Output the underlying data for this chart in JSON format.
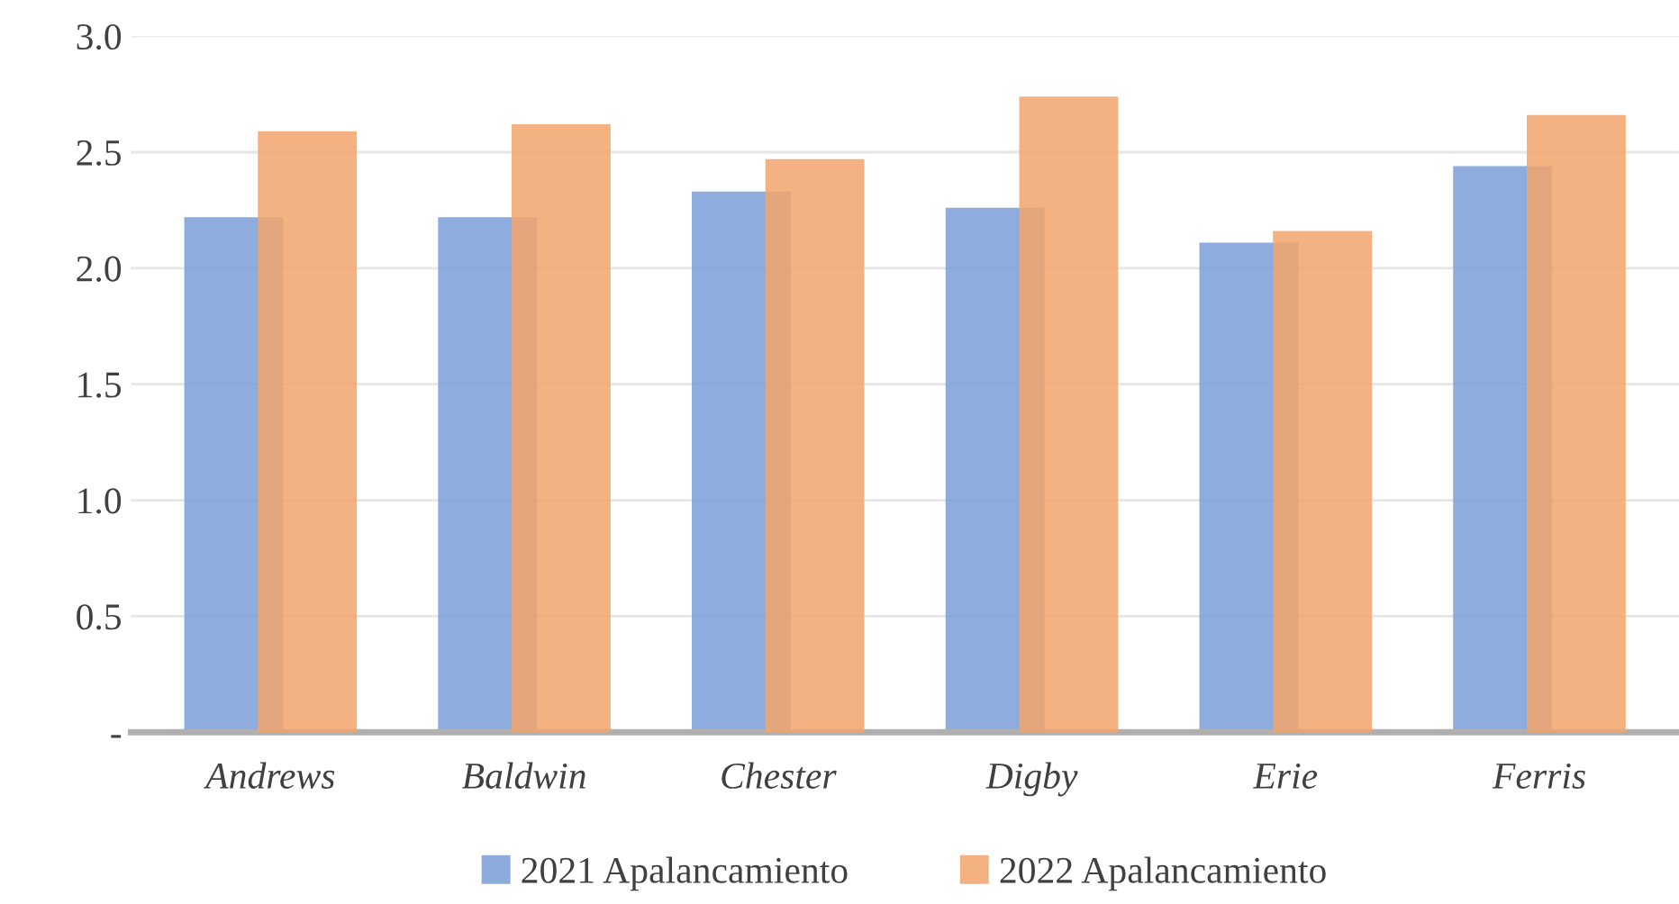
{
  "chart_data": {
    "type": "bar",
    "categories": [
      "Andrews",
      "Baldwin",
      "Chester",
      "Digby",
      "Erie",
      "Ferris"
    ],
    "series": [
      {
        "name": "2021 Apalancamiento",
        "color": "#7a9dd8",
        "values": [
          2.22,
          2.22,
          2.33,
          2.26,
          2.11,
          2.44
        ]
      },
      {
        "name": "2022 Apalancamiento",
        "color": "#f2a46c",
        "values": [
          2.59,
          2.62,
          2.47,
          2.74,
          2.16,
          2.66
        ]
      }
    ],
    "ylim": [
      0,
      3.0
    ],
    "yticks": [
      {
        "value": 0,
        "label": "-"
      },
      {
        "value": 0.5,
        "label": "0.5"
      },
      {
        "value": 1.0,
        "label": "1.0"
      },
      {
        "value": 1.5,
        "label": "1.5"
      },
      {
        "value": 2.0,
        "label": "2.0"
      },
      {
        "value": 2.5,
        "label": "2.5"
      },
      {
        "value": 3.0,
        "label": "3.0"
      }
    ],
    "grid": "y",
    "legend": "bottom"
  }
}
